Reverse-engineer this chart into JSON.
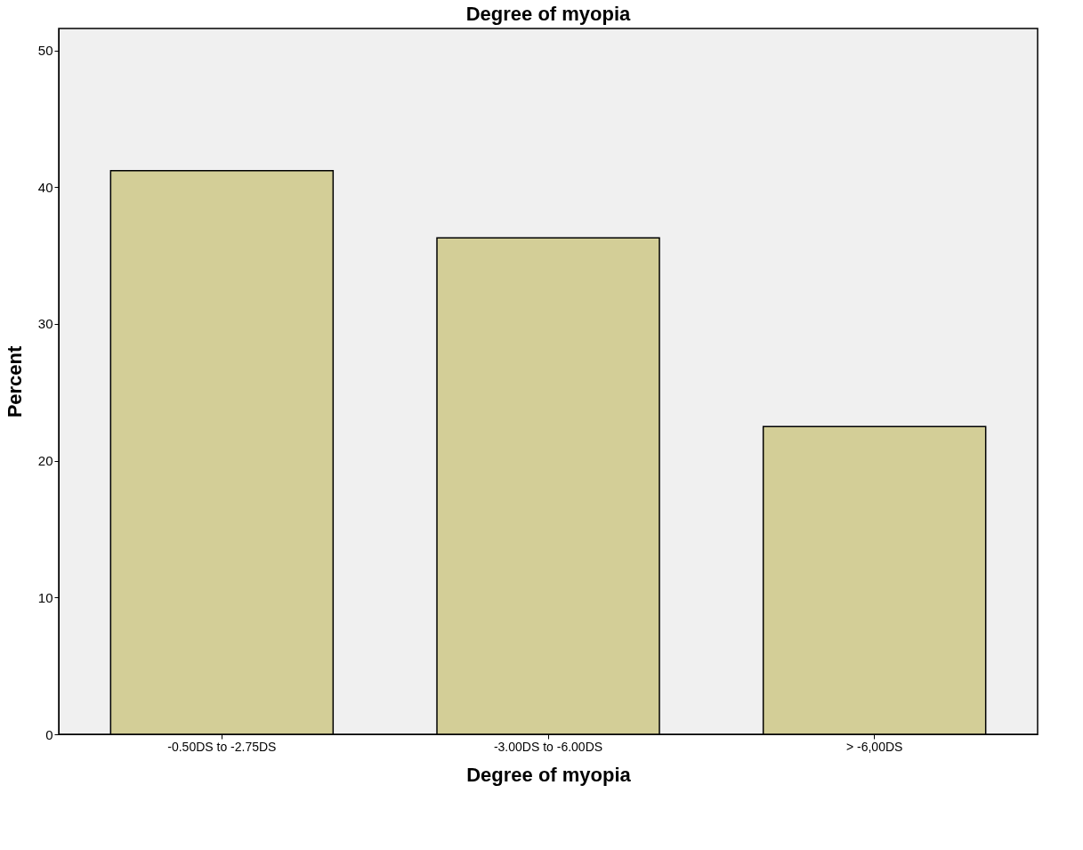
{
  "chart_data": {
    "type": "bar",
    "title": "Degree of myopia",
    "xlabel": "Degree of myopia",
    "ylabel": "Percent",
    "categories": [
      "-0.50DS to -2.75DS",
      "-3.00DS to -6.00DS",
      "> -6,00DS"
    ],
    "values": [
      41.2,
      36.3,
      22.5
    ],
    "color": "#d3ce97",
    "ylim": [
      0,
      51.6
    ],
    "yticks": [
      0,
      10,
      20,
      30,
      40,
      50
    ],
    "grid": false
  }
}
